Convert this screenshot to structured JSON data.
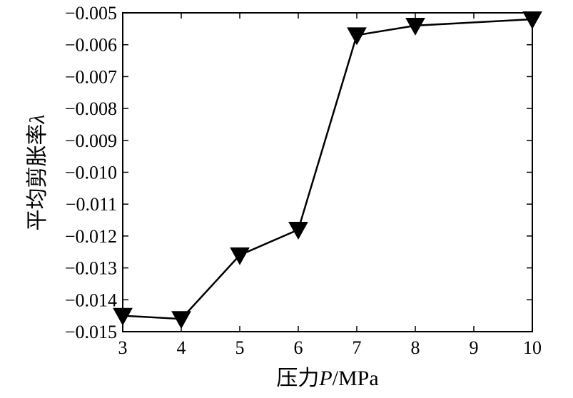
{
  "chart_data": {
    "type": "line",
    "title": "",
    "xlabel": {
      "prefix": "压力",
      "symbol": "P",
      "unit": "/MPa"
    },
    "ylabel": {
      "text": "平均剪胀率",
      "symbol": "λ"
    },
    "xlim": [
      3,
      10
    ],
    "ylim": [
      -0.015,
      -0.005
    ],
    "x_ticks": [
      "3",
      "4",
      "5",
      "6",
      "7",
      "8",
      "9",
      "10"
    ],
    "y_ticks": [
      "−0.005",
      "−0.006",
      "−0.007",
      "−0.008",
      "−0.009",
      "−0.010",
      "−0.011",
      "−0.012",
      "−0.013",
      "−0.014",
      "−0.015"
    ],
    "grid": false,
    "marker": "triangle-down",
    "series": [
      {
        "x": [
          3,
          4,
          5,
          6,
          7,
          8,
          10
        ],
        "y": [
          -0.0145,
          -0.0146,
          -0.0126,
          -0.0118,
          -0.0057,
          -0.0054,
          -0.0052
        ]
      }
    ]
  }
}
